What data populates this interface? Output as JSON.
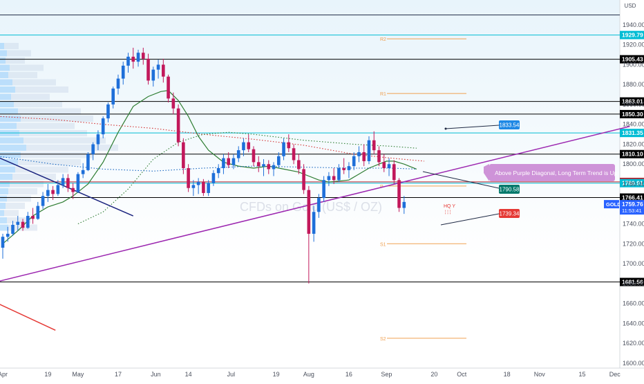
{
  "chart_data": {
    "type": "candlestick",
    "symbol": "GOLD",
    "watermark": "CFDs on Gold (US$ / OZ)",
    "currency": "USD",
    "y_axis": {
      "ylim": [
        1595,
        1965
      ],
      "ticks": [
        1600,
        1620,
        1640,
        1660,
        1680,
        1700,
        1720,
        1740,
        1760,
        1780,
        1800,
        1820,
        1840,
        1860,
        1880,
        1900,
        1920,
        1940
      ],
      "tick_labels": [
        "1600.00",
        "1620.00",
        "1640.00",
        "1660.00",
        "1680.00",
        "1700.00",
        "1720.00",
        "1740.00",
        "1760.00",
        "1780.00",
        "1800.00",
        "1820.00",
        "1840.00",
        "1860.00",
        "1880.00",
        "1900.00",
        "1920.00",
        "1940.00"
      ]
    },
    "x_axis": {
      "labels": [
        "Apr",
        "19",
        "May",
        "17",
        "Jun",
        "14",
        "Jul",
        "19",
        "Aug",
        "16",
        "Sep",
        "20",
        "Oct",
        "18",
        "Nov",
        "15",
        "Dec"
      ],
      "tick_days": [
        0,
        18,
        30,
        46,
        61,
        74,
        91,
        109,
        122,
        138,
        153,
        172,
        183,
        201,
        214,
        231,
        244
      ]
    },
    "horizontal_levels": [
      {
        "price": 1950.0,
        "color": "#1f2a44",
        "label": ""
      },
      {
        "price": 1929.79,
        "color": "#00bcd4",
        "label": "1929.79"
      },
      {
        "price": 1905.43,
        "color": "#000000",
        "label": "1905.43"
      },
      {
        "price": 1863.01,
        "color": "#000000",
        "label": "1863.01"
      },
      {
        "price": 1850.3,
        "color": "#000000",
        "label": "1850.30"
      },
      {
        "price": 1831.35,
        "color": "#00bcd4",
        "label": "1831.35"
      },
      {
        "price": 1810.1,
        "color": "#000000",
        "label": "1810.10"
      },
      {
        "price": 1782.13,
        "color": "#b2202b",
        "label": "1782.13"
      },
      {
        "price": 1780.91,
        "color": "#00bcd4",
        "label": "1780.91"
      },
      {
        "price": 1766.41,
        "color": "#000000",
        "label": "1766.41"
      },
      {
        "price": 1681.56,
        "color": "#000000",
        "label": "1681.56"
      }
    ],
    "pivots": [
      {
        "name": "R2",
        "price": 1926
      },
      {
        "name": "R1",
        "price": 1871
      },
      {
        "name": "P",
        "price": 1778
      },
      {
        "name": "S1",
        "price": 1720
      },
      {
        "name": "S2",
        "price": 1625
      }
    ],
    "current_price": {
      "label": "GOLD",
      "price": 1759.76,
      "value_label": "1759.76",
      "countdown": "11:53:41",
      "color": "#2962ff"
    },
    "annotations": [
      {
        "text": "1833.54",
        "price": 1833.54,
        "color": "#1e88e5"
      },
      {
        "text": "1790.58",
        "price": 1790.58,
        "color": "#00796b"
      },
      {
        "text": "1739.34",
        "price": 1739.34,
        "color": "#e53935"
      },
      {
        "text": "Above Purple Diagonal, Long Term Trend is Up",
        "color": "#ce93d8"
      }
    ],
    "hq_label": "HQ Y",
    "trendlines": [
      {
        "name": "purple-diagonal",
        "color": "#9c27b0",
        "from": {
          "day": -2,
          "price": 1682
        },
        "to": {
          "day": 250,
          "price": 1838
        }
      },
      {
        "name": "blue-downtrend",
        "color": "#1a237e",
        "from": {
          "day": -2,
          "price": 1807
        },
        "to": {
          "day": 52,
          "price": 1748
        }
      },
      {
        "name": "red-downtrend",
        "color": "#e53935",
        "from": {
          "day": -2,
          "price": 1660
        },
        "to": {
          "day": 21,
          "price": 1633
        }
      }
    ],
    "moving_averages": [
      {
        "name": "sma-green",
        "color": "#2e7d32",
        "style": "solid",
        "points": [
          [
            0,
            1720
          ],
          [
            6,
            1733
          ],
          [
            12,
            1748
          ],
          [
            18,
            1757
          ],
          [
            24,
            1762
          ],
          [
            28,
            1768
          ],
          [
            34,
            1780
          ],
          [
            40,
            1802
          ],
          [
            46,
            1832
          ],
          [
            52,
            1858
          ],
          [
            58,
            1868
          ],
          [
            63,
            1873
          ],
          [
            66,
            1874
          ],
          [
            70,
            1864
          ],
          [
            74,
            1848
          ],
          [
            78,
            1828
          ],
          [
            82,
            1814
          ],
          [
            88,
            1802
          ],
          [
            94,
            1798
          ],
          [
            100,
            1796
          ],
          [
            106,
            1798
          ],
          [
            112,
            1795
          ],
          [
            118,
            1792
          ],
          [
            122,
            1788
          ],
          [
            126,
            1784
          ],
          [
            130,
            1782
          ],
          [
            134,
            1783
          ],
          [
            138,
            1784
          ],
          [
            142,
            1790
          ],
          [
            146,
            1796
          ],
          [
            150,
            1800
          ],
          [
            153,
            1803
          ],
          [
            156,
            1803
          ],
          [
            160,
            1800
          ],
          [
            163,
            1797
          ],
          [
            165,
            1795
          ]
        ]
      },
      {
        "name": "red-dotted",
        "color": "#d32f2f",
        "style": "dotted",
        "points": [
          [
            -2,
            1848
          ],
          [
            20,
            1845
          ],
          [
            40,
            1840
          ],
          [
            60,
            1836
          ],
          [
            80,
            1830
          ],
          [
            100,
            1825
          ],
          [
            120,
            1819
          ],
          [
            140,
            1810
          ],
          [
            155,
            1806
          ],
          [
            168,
            1803
          ]
        ]
      },
      {
        "name": "green-dotted",
        "color": "#2e7d32",
        "style": "dotted",
        "points": [
          [
            30,
            1740
          ],
          [
            40,
            1752
          ],
          [
            50,
            1775
          ],
          [
            60,
            1805
          ],
          [
            70,
            1822
          ],
          [
            80,
            1830
          ],
          [
            90,
            1832
          ],
          [
            100,
            1830
          ],
          [
            120,
            1824
          ],
          [
            140,
            1820
          ],
          [
            155,
            1818
          ],
          [
            165,
            1816
          ]
        ]
      },
      {
        "name": "blue-dotted",
        "color": "#1565c0",
        "style": "dotted",
        "points": [
          [
            -2,
            1808
          ],
          [
            20,
            1800
          ],
          [
            40,
            1795
          ],
          [
            60,
            1793
          ],
          [
            80,
            1796
          ],
          [
            100,
            1798
          ],
          [
            120,
            1797
          ],
          [
            140,
            1796
          ],
          [
            155,
            1796
          ],
          [
            165,
            1795
          ]
        ]
      }
    ],
    "candles": [
      [
        0,
        1716,
        1730,
        1705,
        1727
      ],
      [
        2,
        1727,
        1737,
        1722,
        1730
      ],
      [
        4,
        1730,
        1743,
        1728,
        1739
      ],
      [
        6,
        1739,
        1748,
        1733,
        1742
      ],
      [
        8,
        1742,
        1745,
        1733,
        1736
      ],
      [
        10,
        1736,
        1752,
        1735,
        1748
      ],
      [
        12,
        1748,
        1756,
        1740,
        1745
      ],
      [
        14,
        1745,
        1762,
        1744,
        1758
      ],
      [
        16,
        1758,
        1772,
        1755,
        1768
      ],
      [
        18,
        1768,
        1780,
        1762,
        1774
      ],
      [
        20,
        1774,
        1778,
        1764,
        1770
      ],
      [
        22,
        1770,
        1784,
        1768,
        1779
      ],
      [
        24,
        1779,
        1790,
        1776,
        1786
      ],
      [
        26,
        1786,
        1790,
        1772,
        1776
      ],
      [
        28,
        1776,
        1781,
        1765,
        1772
      ],
      [
        30,
        1772,
        1792,
        1771,
        1790
      ],
      [
        32,
        1790,
        1801,
        1786,
        1794
      ],
      [
        34,
        1794,
        1812,
        1793,
        1810
      ],
      [
        36,
        1810,
        1822,
        1804,
        1820
      ],
      [
        38,
        1820,
        1834,
        1814,
        1830
      ],
      [
        40,
        1830,
        1848,
        1826,
        1846
      ],
      [
        42,
        1846,
        1862,
        1842,
        1860
      ],
      [
        44,
        1860,
        1878,
        1856,
        1876
      ],
      [
        46,
        1876,
        1890,
        1870,
        1886
      ],
      [
        48,
        1886,
        1903,
        1880,
        1899
      ],
      [
        50,
        1899,
        1912,
        1892,
        1908
      ],
      [
        52,
        1908,
        1917,
        1896,
        1903
      ],
      [
        54,
        1903,
        1915,
        1898,
        1912
      ],
      [
        56,
        1912,
        1917,
        1900,
        1906
      ],
      [
        58,
        1906,
        1911,
        1880,
        1884
      ],
      [
        60,
        1884,
        1898,
        1878,
        1895
      ],
      [
        62,
        1895,
        1905,
        1886,
        1900
      ],
      [
        64,
        1900,
        1906,
        1882,
        1888
      ],
      [
        66,
        1888,
        1890,
        1862,
        1866
      ],
      [
        68,
        1866,
        1872,
        1850,
        1856
      ],
      [
        70,
        1856,
        1860,
        1818,
        1822
      ],
      [
        72,
        1822,
        1826,
        1790,
        1796
      ],
      [
        74,
        1796,
        1800,
        1772,
        1776
      ],
      [
        76,
        1776,
        1784,
        1768,
        1779
      ],
      [
        78,
        1779,
        1786,
        1770,
        1782
      ],
      [
        80,
        1782,
        1785,
        1768,
        1771
      ],
      [
        82,
        1771,
        1784,
        1768,
        1781
      ],
      [
        84,
        1781,
        1794,
        1778,
        1791
      ],
      [
        86,
        1791,
        1800,
        1786,
        1796
      ],
      [
        88,
        1796,
        1810,
        1790,
        1806
      ],
      [
        90,
        1806,
        1812,
        1796,
        1799
      ],
      [
        92,
        1799,
        1810,
        1795,
        1806
      ],
      [
        94,
        1806,
        1818,
        1802,
        1814
      ],
      [
        96,
        1814,
        1826,
        1808,
        1822
      ],
      [
        98,
        1822,
        1830,
        1812,
        1815
      ],
      [
        100,
        1815,
        1818,
        1798,
        1802
      ],
      [
        102,
        1802,
        1808,
        1792,
        1798
      ],
      [
        104,
        1798,
        1805,
        1788,
        1800
      ],
      [
        106,
        1800,
        1804,
        1790,
        1795
      ],
      [
        108,
        1795,
        1802,
        1788,
        1799
      ],
      [
        110,
        1799,
        1812,
        1796,
        1808
      ],
      [
        112,
        1808,
        1826,
        1804,
        1822
      ],
      [
        114,
        1822,
        1830,
        1812,
        1816
      ],
      [
        116,
        1816,
        1820,
        1800,
        1804
      ],
      [
        118,
        1804,
        1810,
        1790,
        1795
      ],
      [
        120,
        1795,
        1800,
        1770,
        1774
      ],
      [
        122,
        1774,
        1778,
        1680,
        1730
      ],
      [
        124,
        1730,
        1758,
        1722,
        1752
      ],
      [
        126,
        1752,
        1770,
        1746,
        1766
      ],
      [
        128,
        1766,
        1788,
        1762,
        1784
      ],
      [
        130,
        1784,
        1792,
        1778,
        1788
      ],
      [
        132,
        1788,
        1796,
        1780,
        1784
      ],
      [
        134,
        1784,
        1800,
        1782,
        1796
      ],
      [
        136,
        1796,
        1806,
        1790,
        1794
      ],
      [
        138,
        1794,
        1802,
        1786,
        1798
      ],
      [
        140,
        1798,
        1812,
        1794,
        1808
      ],
      [
        142,
        1808,
        1818,
        1802,
        1812
      ],
      [
        144,
        1812,
        1820,
        1798,
        1803
      ],
      [
        146,
        1803,
        1828,
        1800,
        1824
      ],
      [
        148,
        1824,
        1833,
        1810,
        1814
      ],
      [
        150,
        1814,
        1818,
        1798,
        1802
      ],
      [
        152,
        1802,
        1810,
        1792,
        1796
      ],
      [
        154,
        1796,
        1806,
        1788,
        1800
      ],
      [
        156,
        1800,
        1804,
        1780,
        1784
      ],
      [
        158,
        1784,
        1786,
        1752,
        1756
      ],
      [
        160,
        1756,
        1768,
        1750,
        1762
      ]
    ]
  }
}
